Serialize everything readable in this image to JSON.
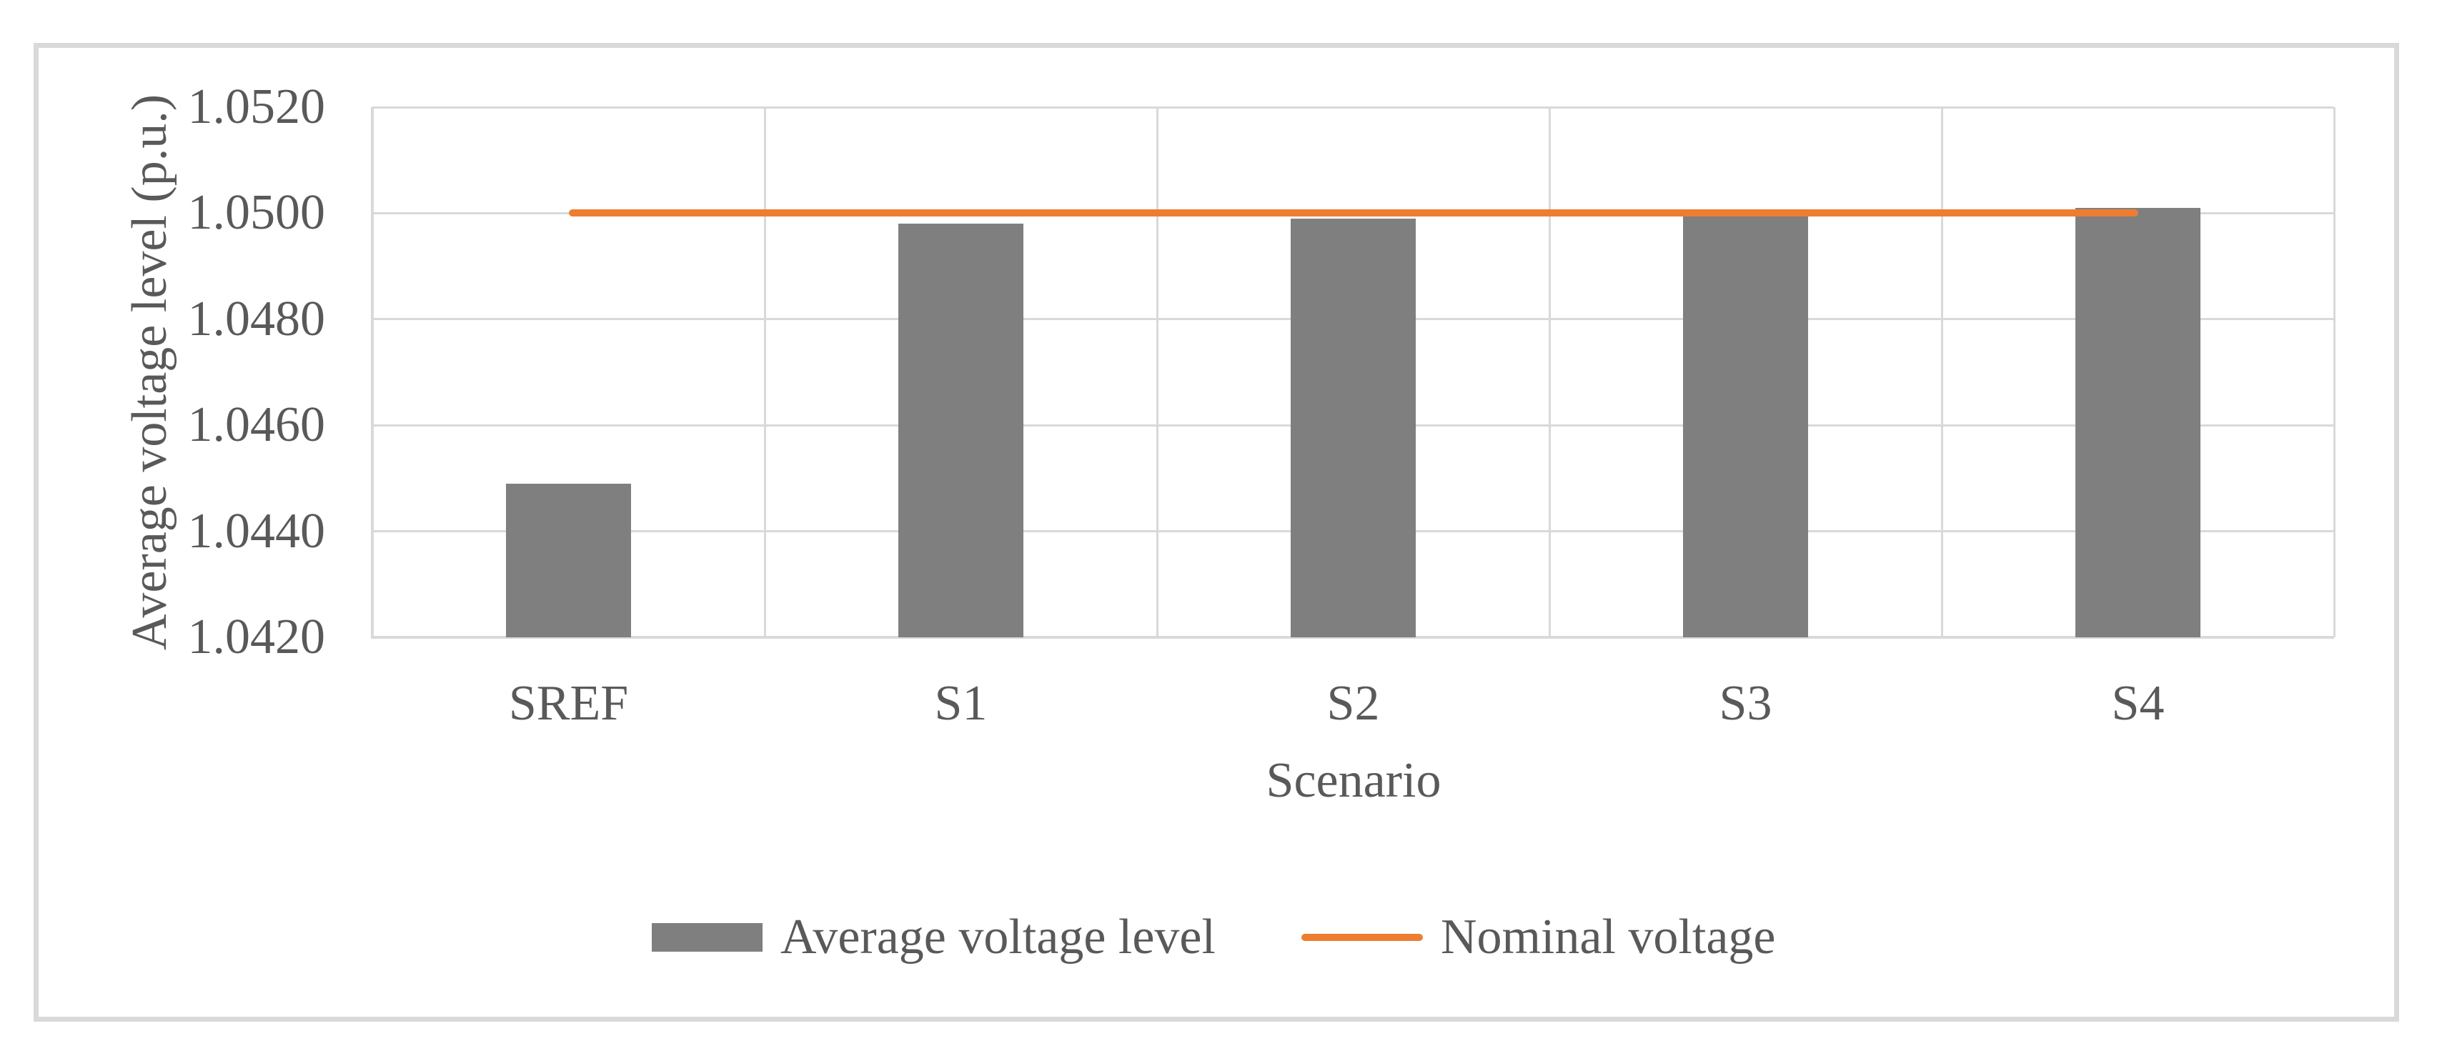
{
  "figure": {
    "background_color": "#ffffff",
    "border_color": "#d9d9d9",
    "text_color": "#595959",
    "gridline_color": "#d9d9d9"
  },
  "chart_data": {
    "type": "bar",
    "categories": [
      "SREF",
      "S1",
      "S2",
      "S3",
      "S4"
    ],
    "series": [
      {
        "name": "Average voltage level",
        "type": "bar",
        "color": "#7f7f7f",
        "values": [
          1.0449,
          1.0498,
          1.0499,
          1.05,
          1.0501
        ]
      },
      {
        "name": "Nominal voltage",
        "type": "line",
        "color": "#ed7d31",
        "values": [
          1.05,
          1.05,
          1.05,
          1.05,
          1.05
        ]
      }
    ],
    "title": "",
    "xlabel": "Scenario",
    "ylabel": "Average voltage level (p.u.)",
    "ylim": [
      1.042,
      1.052
    ],
    "ytick_step": 0.002,
    "ytick_labels": [
      "1.0520",
      "1.0500",
      "1.0480",
      "1.0460",
      "1.0440",
      "1.0420"
    ],
    "grid": "horizontal and vertical, light gray",
    "legend_position": "bottom-center"
  },
  "legend": {
    "items": [
      {
        "label": "Average voltage level",
        "swatch": "rect",
        "color": "#7f7f7f"
      },
      {
        "label": "Nominal voltage",
        "swatch": "line",
        "color": "#ed7d31"
      }
    ]
  }
}
